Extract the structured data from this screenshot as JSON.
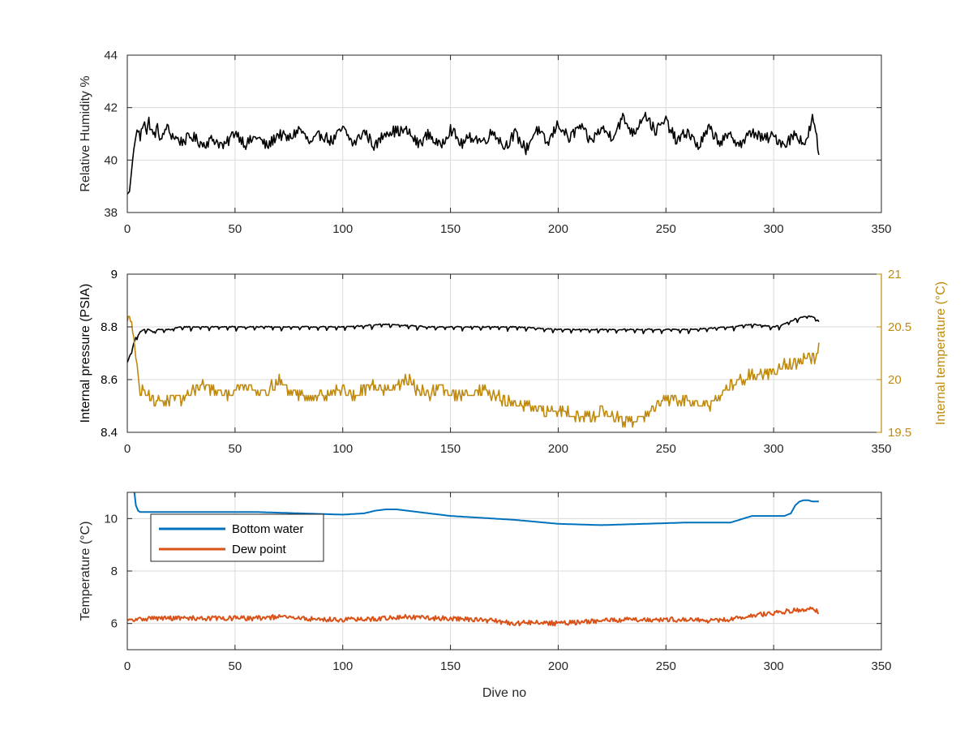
{
  "colors": {
    "black": "#000000",
    "gold": "#C08A0E",
    "blue": "#0072BD",
    "orange": "#D95319",
    "grid": "#DADADA",
    "axis": "#262626"
  },
  "chart_data": [
    {
      "type": "line",
      "xlim": [
        0,
        350
      ],
      "ylim": [
        38,
        44
      ],
      "xticks": [
        0,
        50,
        100,
        150,
        200,
        250,
        300,
        350
      ],
      "yticks": [
        38,
        40,
        42,
        44
      ],
      "ylabel": "Relative Humidity %",
      "xlabel": "",
      "grid": true,
      "series": [
        {
          "color": "#000000",
          "x": [
            0,
            1,
            2,
            3,
            4,
            5,
            6,
            7,
            8,
            9,
            10,
            12,
            14,
            16,
            18,
            20,
            25,
            30,
            35,
            40,
            45,
            50,
            55,
            60,
            65,
            70,
            75,
            80,
            85,
            90,
            95,
            100,
            105,
            110,
            115,
            120,
            125,
            130,
            135,
            140,
            145,
            150,
            155,
            160,
            165,
            170,
            175,
            180,
            185,
            190,
            195,
            200,
            205,
            210,
            215,
            220,
            225,
            230,
            235,
            240,
            245,
            250,
            255,
            260,
            265,
            270,
            275,
            280,
            285,
            290,
            295,
            300,
            305,
            310,
            315,
            318,
            320,
            321
          ],
          "y": [
            38.7,
            38.8,
            39.6,
            40.4,
            40.9,
            41.2,
            40.8,
            41.3,
            41.6,
            41.0,
            41.5,
            40.9,
            41.2,
            40.7,
            41.3,
            41.0,
            40.7,
            40.9,
            40.6,
            40.8,
            40.5,
            41.1,
            40.6,
            40.9,
            40.5,
            41.0,
            40.8,
            41.2,
            40.6,
            41.0,
            40.7,
            41.2,
            40.6,
            41.1,
            40.5,
            41.1,
            41.1,
            41.1,
            40.6,
            41.0,
            40.5,
            41.2,
            40.6,
            40.9,
            40.7,
            41.1,
            40.5,
            41.0,
            40.4,
            41.2,
            40.6,
            41.4,
            40.8,
            41.3,
            40.7,
            41.2,
            40.9,
            41.6,
            41.0,
            41.8,
            41.1,
            41.5,
            40.7,
            41.1,
            40.5,
            41.2,
            40.7,
            40.9,
            40.6,
            41.1,
            40.8,
            40.9,
            40.6,
            41.0,
            40.6,
            41.6,
            40.8,
            40.2
          ]
        }
      ]
    },
    {
      "type": "line",
      "xlim": [
        0,
        350
      ],
      "ylim": [
        8.4,
        9
      ],
      "ylim_right": [
        19.5,
        21
      ],
      "xticks": [
        0,
        50,
        100,
        150,
        200,
        250,
        300,
        350
      ],
      "yticks": [
        8.4,
        8.6,
        8.8,
        9
      ],
      "yticks_right": [
        19.5,
        20,
        20.5,
        21
      ],
      "yticklabels_right": [
        "19.5",
        "20",
        "20.5",
        "21"
      ],
      "ylabel": "Internal pressure (PSIA)",
      "ylabel_right": "Internal temperature (°C)",
      "xlabel": "",
      "grid": true,
      "series": [
        {
          "color": "#000000",
          "axis": "left",
          "x": [
            0,
            1,
            2,
            3,
            4,
            5,
            6,
            8,
            10,
            12,
            14,
            16,
            20,
            25,
            30,
            40,
            50,
            60,
            80,
            100,
            120,
            140,
            160,
            180,
            200,
            220,
            240,
            260,
            280,
            290,
            300,
            305,
            310,
            315,
            318,
            320,
            321
          ],
          "y": [
            8.68,
            8.69,
            8.7,
            8.74,
            8.76,
            8.77,
            8.78,
            8.79,
            8.79,
            8.78,
            8.79,
            8.79,
            8.79,
            8.8,
            8.8,
            8.8,
            8.8,
            8.8,
            8.8,
            8.8,
            8.81,
            8.8,
            8.8,
            8.8,
            8.79,
            8.79,
            8.79,
            8.79,
            8.8,
            8.81,
            8.8,
            8.81,
            8.83,
            8.84,
            8.84,
            8.83,
            8.82
          ],
          "osc": 0.016
        },
        {
          "color": "#C08A0E",
          "axis": "right",
          "x": [
            0,
            1,
            2,
            3,
            4,
            5,
            6,
            8,
            10,
            12,
            15,
            20,
            25,
            30,
            35,
            40,
            45,
            50,
            55,
            60,
            65,
            70,
            75,
            80,
            85,
            90,
            95,
            100,
            105,
            110,
            115,
            120,
            125,
            130,
            135,
            140,
            145,
            150,
            155,
            160,
            165,
            170,
            175,
            180,
            185,
            190,
            195,
            200,
            205,
            210,
            215,
            220,
            225,
            230,
            235,
            240,
            245,
            250,
            255,
            260,
            265,
            270,
            275,
            280,
            285,
            290,
            295,
            300,
            305,
            310,
            315,
            320,
            321
          ],
          "y": [
            20.5,
            20.6,
            20.6,
            20.4,
            20.2,
            20.0,
            19.9,
            19.9,
            19.85,
            19.8,
            19.8,
            19.8,
            19.8,
            19.9,
            19.95,
            19.9,
            19.85,
            19.9,
            19.95,
            19.9,
            19.9,
            20.0,
            19.9,
            19.85,
            19.85,
            19.85,
            19.9,
            19.9,
            19.85,
            19.9,
            19.95,
            19.9,
            19.95,
            20.0,
            19.9,
            19.85,
            19.95,
            19.85,
            19.85,
            19.9,
            19.9,
            19.85,
            19.8,
            19.75,
            19.75,
            19.7,
            19.7,
            19.7,
            19.7,
            19.65,
            19.65,
            19.7,
            19.65,
            19.6,
            19.6,
            19.65,
            19.75,
            19.8,
            19.8,
            19.8,
            19.8,
            19.75,
            19.85,
            19.95,
            20.0,
            20.05,
            20.05,
            20.1,
            20.15,
            20.15,
            20.2,
            20.2,
            20.3
          ],
          "step": 0.05
        }
      ]
    },
    {
      "type": "line",
      "xlim": [
        0,
        350
      ],
      "ylim": [
        5,
        11
      ],
      "xticks": [
        0,
        50,
        100,
        150,
        200,
        250,
        300,
        350
      ],
      "yticks": [
        6,
        8,
        10
      ],
      "ylabel": "Temperature (°C)",
      "xlabel": "Dive no",
      "grid": true,
      "legend": "top-left",
      "series": [
        {
          "name": "Bottom water",
          "color": "#0072BD",
          "x": [
            3,
            4,
            5,
            6,
            10,
            20,
            40,
            60,
            80,
            100,
            110,
            115,
            120,
            125,
            130,
            140,
            150,
            160,
            180,
            200,
            220,
            240,
            260,
            270,
            280,
            290,
            300,
            305,
            308,
            310,
            312,
            314,
            316,
            318,
            320,
            321
          ],
          "y": [
            11.2,
            10.5,
            10.3,
            10.25,
            10.25,
            10.25,
            10.25,
            10.25,
            10.2,
            10.15,
            10.2,
            10.3,
            10.35,
            10.35,
            10.3,
            10.2,
            10.1,
            10.05,
            9.95,
            9.8,
            9.75,
            9.8,
            9.85,
            9.85,
            9.85,
            10.1,
            10.1,
            10.1,
            10.2,
            10.5,
            10.65,
            10.7,
            10.7,
            10.65,
            10.65,
            10.65
          ]
        },
        {
          "name": "Dew point",
          "color": "#D95319",
          "x": [
            0,
            10,
            20,
            30,
            40,
            50,
            60,
            70,
            80,
            90,
            100,
            110,
            120,
            130,
            140,
            150,
            160,
            170,
            180,
            190,
            200,
            210,
            220,
            230,
            240,
            250,
            260,
            270,
            280,
            290,
            300,
            310,
            315,
            318,
            320,
            321
          ],
          "y": [
            6.1,
            6.2,
            6.2,
            6.2,
            6.2,
            6.2,
            6.2,
            6.25,
            6.2,
            6.15,
            6.15,
            6.15,
            6.2,
            6.25,
            6.2,
            6.2,
            6.15,
            6.1,
            6.0,
            6.05,
            6.0,
            6.05,
            6.1,
            6.15,
            6.15,
            6.15,
            6.15,
            6.1,
            6.15,
            6.3,
            6.4,
            6.5,
            6.55,
            6.6,
            6.5,
            6.35
          ]
        }
      ]
    }
  ]
}
